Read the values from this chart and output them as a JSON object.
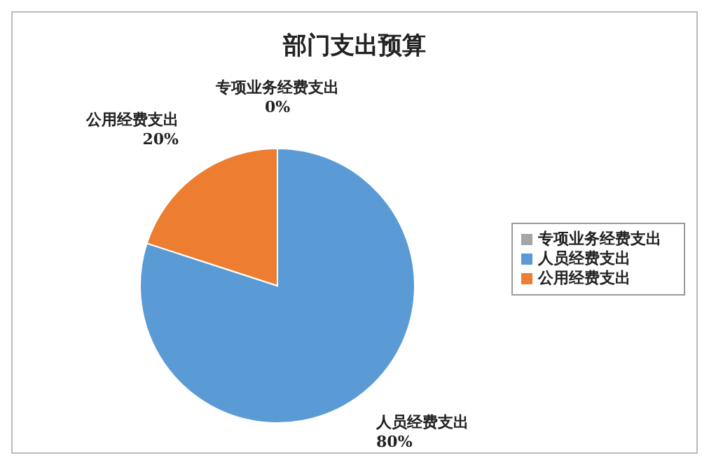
{
  "chart_data": {
    "type": "pie",
    "title": "部门支出预算",
    "categories": [
      "人员经费支出",
      "公用经费支出",
      "专项业务经费支出"
    ],
    "values": [
      80,
      20,
      0
    ],
    "colors": [
      "#5b9bd5",
      "#ed7d31",
      "#a5a5a5"
    ],
    "value_labels": [
      "80%",
      "20%",
      "0%"
    ],
    "legend": "right"
  }
}
